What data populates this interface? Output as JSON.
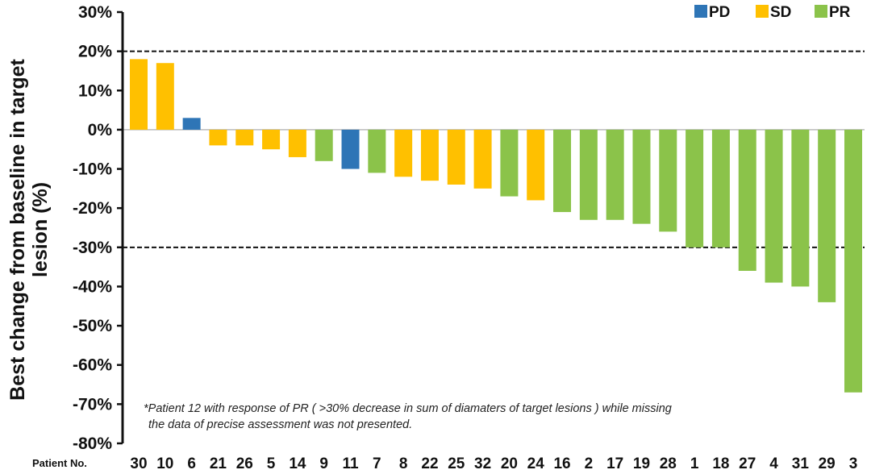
{
  "chart_data": {
    "type": "bar",
    "title": "",
    "ylabel": "Best change from baseline in target lesion (%)",
    "ylabel_lines": [
      "Best change from baseline in target",
      "lesion (%)"
    ],
    "xlabel": "Patient No.",
    "ylim": [
      -80,
      30
    ],
    "yticks": [
      30,
      20,
      10,
      0,
      -10,
      -20,
      -30,
      -40,
      -50,
      -60,
      -70,
      -80
    ],
    "ytick_labels": [
      "30%",
      "20%",
      "10%",
      "0%",
      "-10%",
      "-20%",
      "-30%",
      "-40%",
      "-50%",
      "-60%",
      "-70%",
      "-80%"
    ],
    "reference_lines": [
      20,
      -30
    ],
    "categories": [
      "30",
      "10",
      "6",
      "21",
      "26",
      "5",
      "14",
      "9",
      "11",
      "7",
      "8",
      "22",
      "25",
      "32",
      "20",
      "24",
      "16",
      "2",
      "17",
      "19",
      "28",
      "1",
      "18",
      "27",
      "4",
      "31",
      "29",
      "3"
    ],
    "values": [
      18,
      17,
      3,
      -4,
      -4,
      -5,
      -7,
      -8,
      -10,
      -11,
      -12,
      -13,
      -14,
      -15,
      -17,
      -18,
      -21,
      -23,
      -23,
      -24,
      -26,
      -30,
      -30,
      -36,
      -39,
      -40,
      -44,
      -67
    ],
    "response": [
      "SD",
      "SD",
      "PD",
      "SD",
      "SD",
      "SD",
      "SD",
      "PR",
      "PD",
      "PR",
      "SD",
      "SD",
      "SD",
      "SD",
      "PR",
      "SD",
      "PR",
      "PR",
      "PR",
      "PR",
      "PR",
      "PR",
      "PR",
      "PR",
      "PR",
      "PR",
      "PR",
      "PR"
    ],
    "legend": [
      {
        "label": "PD",
        "color": "#2e75b6"
      },
      {
        "label": "SD",
        "color": "#ffc000"
      },
      {
        "label": "PR",
        "color": "#8bc34a"
      }
    ],
    "legend_position": "top-right",
    "annotation_lines": [
      "*Patient 12 with response of PR ( >30% decrease in sum of diamaters of target lesions ) while missing",
      "the data of precise assessment was not presented."
    ]
  }
}
